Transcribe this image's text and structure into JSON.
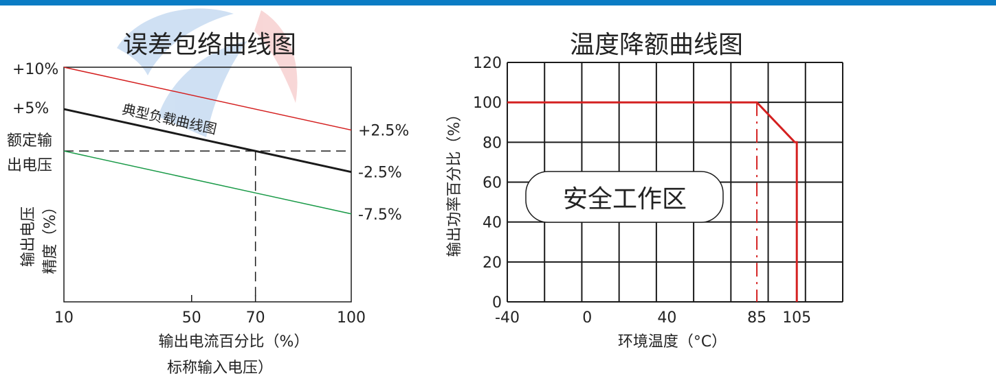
{
  "colors": {
    "topbar": "#0a7cc4",
    "red": "#d42020",
    "green": "#1a9a48",
    "black": "#1a1a1a",
    "watermark_blue": "#a9c8ea",
    "watermark_red": "#f3b6b6"
  },
  "chart_data": [
    {
      "type": "line",
      "title": "误差包络曲线图",
      "xlabel": "输出电流百分比（%）",
      "xlabel2": "标称输入电压）",
      "ylabel_lines": [
        "输出电压",
        "精度（%）"
      ],
      "x_ticks": [
        10,
        50,
        70,
        100
      ],
      "xlim": [
        10,
        100
      ],
      "y_ticks": [
        "+10%",
        "+5%"
      ],
      "y_mid_label": [
        "额定输",
        "出电压"
      ],
      "series": [
        {
          "name": "",
          "color": "red",
          "x": [
            10,
            100
          ],
          "y": [
            10,
            2.5
          ],
          "end_label": "+2.5%"
        },
        {
          "name": "典型负载曲线图",
          "color": "black",
          "x": [
            10,
            100
          ],
          "y": [
            5,
            -2.5
          ],
          "end_label": "-2.5%"
        },
        {
          "name": "",
          "color": "green",
          "x": [
            10,
            100
          ],
          "y": [
            0,
            -7.5
          ],
          "end_label": "-7.5%"
        }
      ],
      "reference": {
        "x": 70,
        "y": 0
      },
      "ylim": [
        -18,
        10
      ]
    },
    {
      "type": "line",
      "title": "温度降额曲线图",
      "xlabel": "环境温度（°C）",
      "ylabel": "输出功率百分比（%）",
      "x_ticks": [
        -40,
        0,
        40,
        85,
        105
      ],
      "y_ticks": [
        0,
        20,
        40,
        60,
        80,
        100,
        120
      ],
      "xlim": [
        -40,
        128
      ],
      "ylim": [
        0,
        120
      ],
      "grid": true,
      "series": [
        {
          "name": "",
          "color": "red",
          "x": [
            -40,
            85,
            104,
            105,
            105
          ],
          "y": [
            100,
            100,
            80,
            80,
            0
          ]
        }
      ],
      "reference_x": 85,
      "annotation": "安全工作区"
    }
  ]
}
